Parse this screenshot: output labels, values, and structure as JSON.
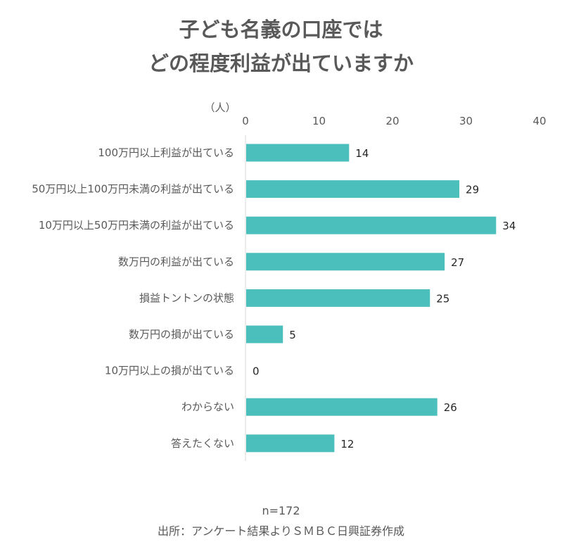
{
  "title_lines": [
    "子ども名義の口座では",
    "どの程度利益が出ていますか"
  ],
  "footer": {
    "n": "n=172",
    "source": "出所：アンケート結果よりＳＭＢＣ日興証券作成"
  },
  "colors": {
    "bar": "#4bbfbb",
    "axis": "#d9d9d9",
    "text": "#595959"
  },
  "chart_data": {
    "type": "bar",
    "orientation": "horizontal",
    "unit_label": "（人）",
    "xlim": [
      0,
      40
    ],
    "xticks": [
      0,
      10,
      20,
      30,
      40
    ],
    "grid": false,
    "categories": [
      "100万円以上利益が出ている",
      "50万円以上100万円未満の利益が出ている",
      "10万円以上50万円未満の利益が出ている",
      "数万円の利益が出ている",
      "損益トントンの状態",
      "数万円の損が出ている",
      "10万円以上の損が出ている",
      "わからない",
      "答えたくない"
    ],
    "values": [
      14,
      29,
      34,
      27,
      25,
      5,
      0,
      26,
      12
    ]
  }
}
